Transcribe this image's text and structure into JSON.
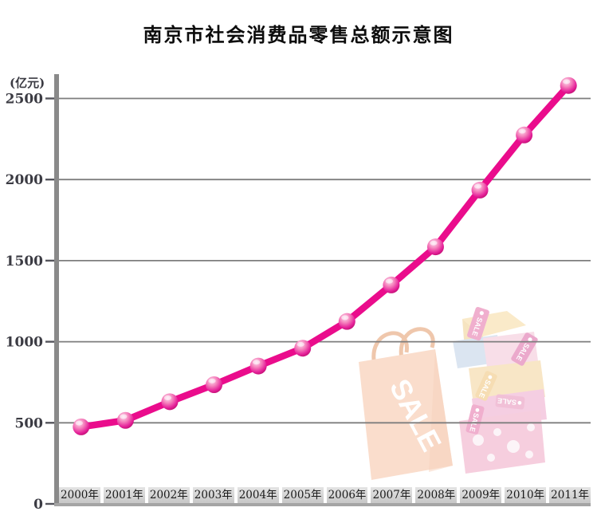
{
  "watermark": {
    "text": "SALE"
  },
  "chart_data": {
    "type": "line",
    "title": "南京市社会消费品零售总额示意图",
    "xlabel": "",
    "ylabel": "(亿元)",
    "unit": "亿元",
    "categories": [
      "2000年",
      "2001年",
      "2002年",
      "2003年",
      "2004年",
      "2005年",
      "2006年",
      "2007年",
      "2008年",
      "2009年",
      "2010年",
      "2011年"
    ],
    "values": [
      475,
      515,
      630,
      735,
      850,
      960,
      1125,
      1350,
      1585,
      1935,
      2275,
      2580
    ],
    "ylim": [
      0,
      2600
    ],
    "yticks": [
      0,
      500,
      1000,
      1500,
      2000,
      2500
    ],
    "grid": true,
    "legend": "none",
    "line_color": "#ea0c8c",
    "marker_style": "glossy-pink-sphere",
    "axis_color": "#8a8a8a",
    "gridline_color": "#7e7e7e"
  }
}
